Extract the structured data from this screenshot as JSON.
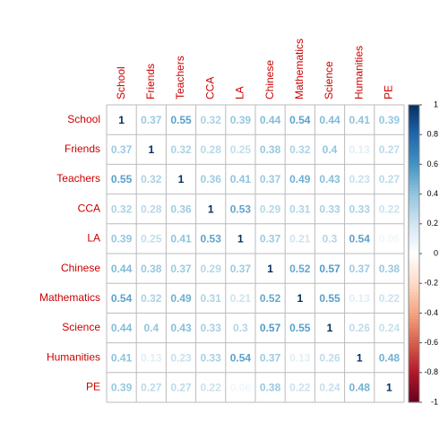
{
  "chart_data": {
    "type": "heatmap",
    "categories": [
      "School",
      "Friends",
      "Teachers",
      "CCA",
      "LA",
      "Chinese",
      "Mathematics",
      "Science",
      "Humanities",
      "PE"
    ],
    "values": [
      [
        1,
        0.37,
        0.55,
        0.32,
        0.39,
        0.44,
        0.54,
        0.44,
        0.41,
        0.39
      ],
      [
        0.37,
        1,
        0.32,
        0.28,
        0.25,
        0.38,
        0.32,
        0.4,
        0.13,
        0.27
      ],
      [
        0.55,
        0.32,
        1,
        0.36,
        0.41,
        0.37,
        0.49,
        0.43,
        0.23,
        0.27
      ],
      [
        0.32,
        0.28,
        0.36,
        1,
        0.53,
        0.29,
        0.31,
        0.33,
        0.33,
        0.22
      ],
      [
        0.39,
        0.25,
        0.41,
        0.53,
        1,
        0.37,
        0.21,
        0.3,
        0.54,
        0.06
      ],
      [
        0.44,
        0.38,
        0.37,
        0.29,
        0.37,
        1,
        0.52,
        0.57,
        0.37,
        0.38
      ],
      [
        0.54,
        0.32,
        0.49,
        0.31,
        0.21,
        0.52,
        1,
        0.55,
        0.13,
        0.22
      ],
      [
        0.44,
        0.4,
        0.43,
        0.33,
        0.3,
        0.57,
        0.55,
        1,
        0.26,
        0.24
      ],
      [
        0.41,
        0.13,
        0.23,
        0.33,
        0.54,
        0.37,
        0.13,
        0.26,
        1,
        0.48
      ],
      [
        0.39,
        0.27,
        0.27,
        0.22,
        0.06,
        0.38,
        0.22,
        0.24,
        0.48,
        1
      ]
    ],
    "label_color": "#cc0000",
    "zlim": [
      -1,
      1
    ],
    "zticks": [
      1,
      0.8,
      0.6,
      0.4,
      0.2,
      0,
      -0.2,
      -0.4,
      -0.6,
      -0.8,
      -1
    ],
    "colorscale": [
      "#67001F",
      "#B2182B",
      "#D6604D",
      "#F4A582",
      "#FDDBC7",
      "#FFFFFF",
      "#D1E5F0",
      "#92C5DE",
      "#4393C3",
      "#2166AC",
      "#053061"
    ]
  }
}
